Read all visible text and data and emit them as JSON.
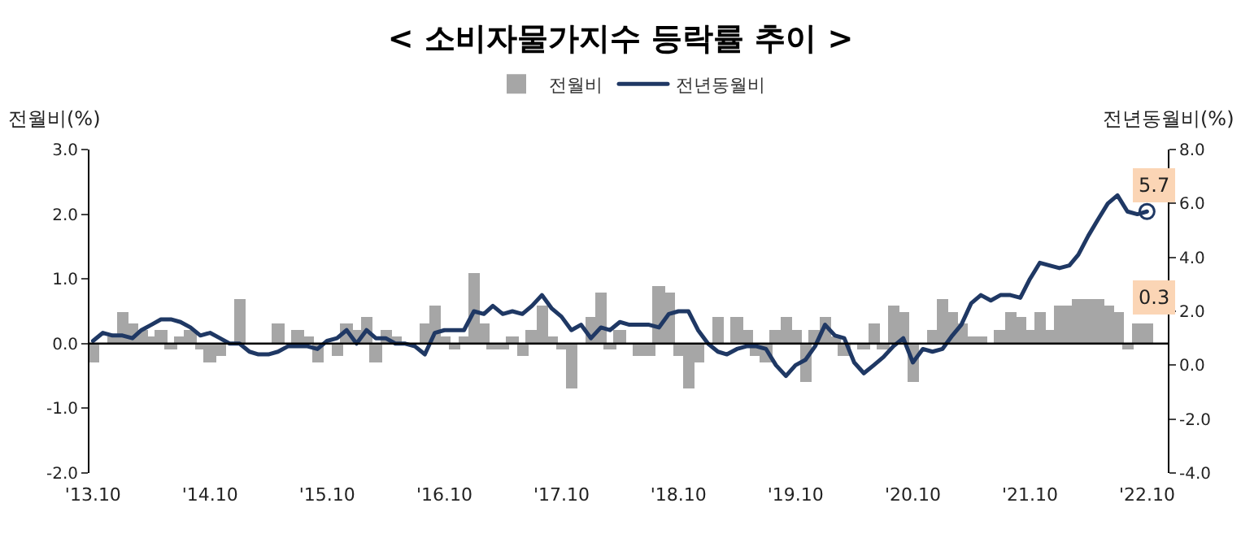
{
  "chart_data": {
    "type": "bar",
    "title": "< 소비자물가지수 등락률 추이 >",
    "ylabel": "전월비(%)",
    "y2label": "전년동월비(%)",
    "x": [
      "2013-10",
      "2013-11",
      "2013-12",
      "2014-01",
      "2014-02",
      "2014-03",
      "2014-04",
      "2014-05",
      "2014-06",
      "2014-07",
      "2014-08",
      "2014-09",
      "2014-10",
      "2014-11",
      "2014-12",
      "2015-01",
      "2015-02",
      "2015-03",
      "2015-04",
      "2015-05",
      "2015-06",
      "2015-07",
      "2015-08",
      "2015-09",
      "2015-10",
      "2015-11",
      "2015-12",
      "2016-01",
      "2016-02",
      "2016-03",
      "2016-04",
      "2016-05",
      "2016-06",
      "2016-07",
      "2016-08",
      "2016-09",
      "2016-10",
      "2016-11",
      "2016-12",
      "2017-01",
      "2017-02",
      "2017-03",
      "2017-04",
      "2017-05",
      "2017-06",
      "2017-07",
      "2017-08",
      "2017-09",
      "2017-10",
      "2017-11",
      "2017-12",
      "2018-01",
      "2018-02",
      "2018-03",
      "2018-04",
      "2018-05",
      "2018-06",
      "2018-07",
      "2018-08",
      "2018-09",
      "2018-10",
      "2018-11",
      "2018-12",
      "2019-01",
      "2019-02",
      "2019-03",
      "2019-04",
      "2019-05",
      "2019-06",
      "2019-07",
      "2019-08",
      "2019-09",
      "2019-10",
      "2019-11",
      "2019-12",
      "2020-01",
      "2020-02",
      "2020-03",
      "2020-04",
      "2020-05",
      "2020-06",
      "2020-07",
      "2020-08",
      "2020-09",
      "2020-10",
      "2020-11",
      "2020-12",
      "2021-01",
      "2021-02",
      "2021-03",
      "2021-04",
      "2021-05",
      "2021-06",
      "2021-07",
      "2021-08",
      "2021-09",
      "2021-10",
      "2021-11",
      "2021-12",
      "2022-01",
      "2022-02",
      "2022-03",
      "2022-04",
      "2022-05",
      "2022-06",
      "2022-07",
      "2022-08",
      "2022-09",
      "2022-10"
    ],
    "series": [
      {
        "name": "전월비",
        "color": "#a6a6a6",
        "values": [
          -0.3,
          0.0,
          0.1,
          0.5,
          0.3,
          0.2,
          0.1,
          0.2,
          -0.1,
          0.1,
          0.2,
          -0.1,
          -0.3,
          -0.2,
          0.0,
          0.7,
          0.0,
          0.0,
          0.0,
          0.3,
          0.0,
          0.2,
          0.1,
          -0.3,
          0.0,
          -0.2,
          0.3,
          0.2,
          0.4,
          -0.3,
          0.2,
          0.1,
          0.0,
          0.0,
          0.3,
          0.6,
          0.1,
          -0.1,
          0.1,
          1.1,
          0.3,
          -0.1,
          -0.1,
          0.1,
          -0.2,
          0.2,
          0.6,
          0.1,
          -0.1,
          -0.7,
          0.0,
          0.4,
          0.8,
          -0.1,
          0.2,
          0.0,
          -0.2,
          -0.2,
          0.9,
          0.8,
          -0.2,
          -0.7,
          -0.3,
          0.0,
          0.4,
          0.0,
          0.4,
          0.2,
          -0.2,
          -0.3,
          0.2,
          0.4,
          0.2,
          -0.6,
          0.2,
          0.4,
          0.1,
          -0.2,
          0.0,
          -0.1,
          0.3,
          -0.1,
          0.6,
          0.5,
          -0.6,
          0.0,
          0.2,
          0.7,
          0.5,
          0.3,
          0.1,
          0.1,
          0.0,
          0.2,
          0.5,
          0.4,
          0.2,
          0.5,
          0.2,
          0.6,
          0.6,
          0.7,
          0.7,
          0.7,
          0.6,
          0.5,
          -0.1,
          0.3,
          0.3
        ],
        "value_labels": [
          null,
          null,
          null,
          null,
          null,
          null,
          null,
          null,
          null,
          null,
          null,
          null,
          null,
          null,
          null,
          null,
          null,
          null,
          null,
          null,
          null,
          null,
          null,
          null,
          null,
          null,
          null,
          null,
          null,
          null,
          null,
          null,
          null,
          null,
          null,
          null,
          null,
          null,
          null,
          null,
          null,
          null,
          null,
          null,
          null,
          null,
          null,
          null,
          null,
          null,
          null,
          null,
          null,
          null,
          null,
          null,
          null,
          null,
          null,
          null,
          null,
          null,
          null,
          null,
          null,
          null,
          null,
          null,
          null,
          null,
          null,
          null,
          null,
          null,
          null,
          null,
          null,
          null,
          null,
          null,
          null,
          null,
          null,
          null,
          null,
          null,
          null,
          null,
          null,
          null,
          null,
          null,
          null,
          null,
          null,
          null,
          null,
          null,
          null,
          null,
          null,
          null,
          null,
          null,
          null,
          null,
          null,
          null,
          "0.3"
        ]
      },
      {
        "name": "전년동월비",
        "type": "line",
        "axis": "y2",
        "color": "#1f3864",
        "values": [
          0.9,
          1.2,
          1.1,
          1.1,
          1.0,
          1.3,
          1.5,
          1.7,
          1.7,
          1.6,
          1.4,
          1.1,
          1.2,
          1.0,
          0.8,
          0.8,
          0.5,
          0.4,
          0.4,
          0.5,
          0.7,
          0.7,
          0.7,
          0.6,
          0.9,
          1.0,
          1.3,
          0.8,
          1.3,
          1.0,
          1.0,
          0.8,
          0.8,
          0.7,
          0.4,
          1.2,
          1.3,
          1.3,
          1.3,
          2.0,
          1.9,
          2.2,
          1.9,
          2.0,
          1.9,
          2.2,
          2.6,
          2.1,
          1.8,
          1.3,
          1.5,
          1.0,
          1.4,
          1.3,
          1.6,
          1.5,
          1.5,
          1.5,
          1.4,
          1.9,
          2.0,
          2.0,
          1.3,
          0.8,
          0.5,
          0.4,
          0.6,
          0.7,
          0.7,
          0.6,
          0.0,
          -0.4,
          0.0,
          0.2,
          0.7,
          1.5,
          1.1,
          1.0,
          0.1,
          -0.3,
          0.0,
          0.3,
          0.7,
          1.0,
          0.1,
          0.6,
          0.5,
          0.6,
          1.1,
          1.5,
          2.3,
          2.6,
          2.4,
          2.6,
          2.6,
          2.5,
          3.2,
          3.8,
          3.7,
          3.6,
          3.7,
          4.1,
          4.8,
          5.4,
          6.0,
          6.3,
          5.7,
          5.6,
          5.7
        ],
        "value_labels": [
          null,
          null,
          null,
          null,
          null,
          null,
          null,
          null,
          null,
          null,
          null,
          null,
          null,
          null,
          null,
          null,
          null,
          null,
          null,
          null,
          null,
          null,
          null,
          null,
          null,
          null,
          null,
          null,
          null,
          null,
          null,
          null,
          null,
          null,
          null,
          null,
          null,
          null,
          null,
          null,
          null,
          null,
          null,
          null,
          null,
          null,
          null,
          null,
          null,
          null,
          null,
          null,
          null,
          null,
          null,
          null,
          null,
          null,
          null,
          null,
          null,
          null,
          null,
          null,
          null,
          null,
          null,
          null,
          null,
          null,
          null,
          null,
          null,
          null,
          null,
          null,
          null,
          null,
          null,
          null,
          null,
          null,
          null,
          null,
          null,
          null,
          null,
          null,
          null,
          null,
          null,
          null,
          null,
          null,
          null,
          null,
          null,
          null,
          null,
          null,
          null,
          null,
          null,
          null,
          null,
          null,
          null,
          null,
          "5.7"
        ]
      }
    ],
    "xlim": [
      "2013-09-20",
      "2022-12-05"
    ],
    "xticks": [
      {
        "value": "2013-10",
        "label": "'13.10"
      },
      {
        "value": "2014-10",
        "label": "'14.10"
      },
      {
        "value": "2015-10",
        "label": "'15.10"
      },
      {
        "value": "2016-10",
        "label": "'16.10"
      },
      {
        "value": "2017-10",
        "label": "'17.10"
      },
      {
        "value": "2018-10",
        "label": "'18.10"
      },
      {
        "value": "2019-10",
        "label": "'19.10"
      },
      {
        "value": "2020-10",
        "label": "'20.10"
      },
      {
        "value": "2021-10",
        "label": "'21.10"
      },
      {
        "value": "2022-10",
        "label": "'22.10"
      }
    ],
    "ylim": [
      -2,
      3
    ],
    "yticks": [
      {
        "value": -2,
        "label": "-2.0"
      },
      {
        "value": -1,
        "label": "-1.0"
      },
      {
        "value": 0,
        "label": "0.0"
      },
      {
        "value": 1,
        "label": "1.0"
      },
      {
        "value": 2,
        "label": "2.0"
      },
      {
        "value": 3,
        "label": "3.0"
      }
    ],
    "y2lim": [
      -4,
      8
    ],
    "y2ticks": [
      {
        "value": -4,
        "label": "-4.0"
      },
      {
        "value": -2,
        "label": "-2.0"
      },
      {
        "value": 0,
        "label": "0.0"
      },
      {
        "value": 2,
        "label": "2.0"
      },
      {
        "value": 4,
        "label": "4.0"
      },
      {
        "value": 6,
        "label": "6.0"
      },
      {
        "value": 8,
        "label": "8.0"
      }
    ],
    "ref_lines": [
      {
        "axis": "y",
        "value": 0,
        "color": "#000000"
      }
    ],
    "legend": "top",
    "marker": "none",
    "line_style": "solid"
  }
}
